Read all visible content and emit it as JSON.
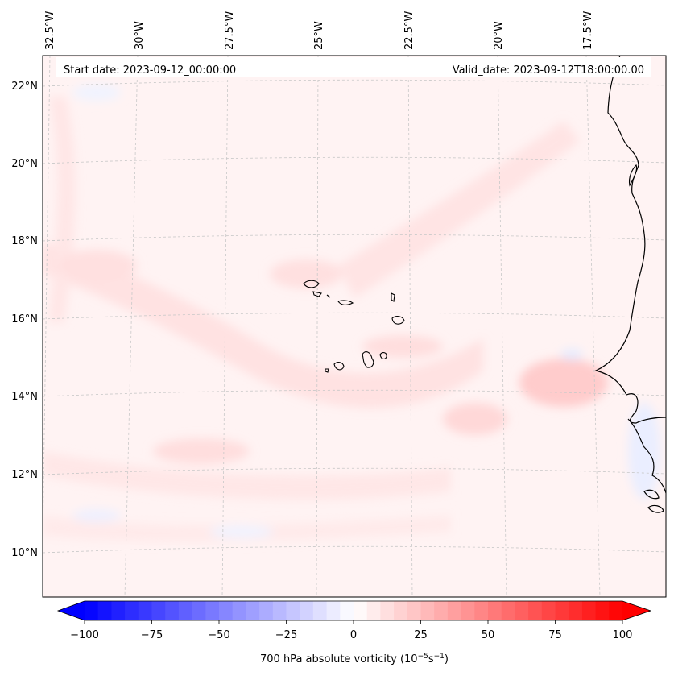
{
  "header": {
    "start_date_label": "Start date: 2023-09-12_00:00:00",
    "valid_date_label": "Valid_date: 2023-09-12T18:00:00.00"
  },
  "lon_labels": [
    "32.5°W",
    "30°W",
    "27.5°W",
    "25°W",
    "22.5°W",
    "20°W",
    "17.5°W"
  ],
  "lat_labels": [
    "22°N",
    "20°N",
    "18°N",
    "16°N",
    "14°N",
    "12°N",
    "10°N"
  ],
  "colorbar": {
    "min": -100,
    "max": 100,
    "extend": "both",
    "ticks": [
      "−100",
      "−75",
      "−50",
      "−25",
      "0",
      "25",
      "50",
      "75",
      "100"
    ],
    "label_main": "700 hPa absolute vorticity (10",
    "label_exp1": "−5",
    "label_mid": "s",
    "label_exp2": "−1",
    "label_end": ")",
    "colormap": "bwr",
    "color_min": "#0000ff",
    "color_mid": "#ffffff",
    "color_max": "#ff0000"
  },
  "colors": {
    "coastline": "#000000",
    "gridline": "#c8c8c8",
    "field_weak_positive": "#ffe6e6",
    "field_moderate_positive": "#ffcfcf",
    "field_weak_negative": "#eef2ff"
  }
}
